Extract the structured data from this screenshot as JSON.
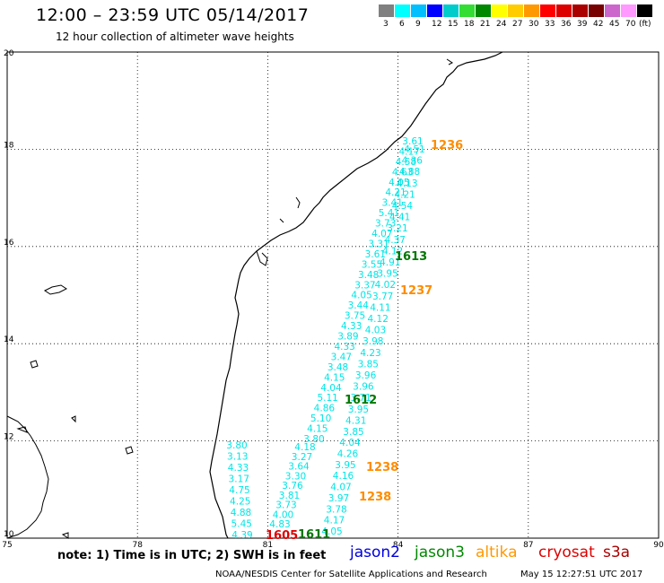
{
  "header": {
    "title": "12:00 – 23:59 UTC 05/14/2017",
    "subtitle": "12 hour collection of altimeter wave heights"
  },
  "scale": {
    "colors": [
      "#808080",
      "#00ffff",
      "#00bfff",
      "#0000ff",
      "#00cccc",
      "#33dd33",
      "#008800",
      "#ffff00",
      "#ffcc00",
      "#ff9900",
      "#ff0000",
      "#dd0000",
      "#aa0000",
      "#770000",
      "#cc66cc",
      "#ff99ff",
      "#000000"
    ],
    "labels": [
      "3",
      "6",
      "9",
      "12",
      "15",
      "18",
      "21",
      "24",
      "27",
      "30",
      "33",
      "36",
      "39",
      "42",
      "45",
      "70",
      "(ft)"
    ]
  },
  "axes": {
    "x_ticks": [
      "75",
      "78",
      "81",
      "84",
      "87",
      "90"
    ],
    "y_ticks": [
      "10",
      "12",
      "14",
      "16",
      "18",
      "20"
    ]
  },
  "tracks": {
    "left_track": [
      "3.80",
      "3.13",
      "4.33",
      "3.17",
      "4.75",
      "4.25",
      "4.88",
      "5.45",
      "4.39"
    ],
    "middle_track": [
      "4.18",
      "3.27",
      "3.64",
      "3.30",
      "3.76",
      "3.81",
      "3.73",
      "4.00",
      "4.83"
    ],
    "right_track_lower": [
      "4.04",
      "4.26",
      "3.95",
      "4.16",
      "4.07",
      "3.97",
      "3.78",
      "4.17",
      "4.05"
    ],
    "main_track": [
      "3.61",
      "4.17",
      "4.58",
      "4.63",
      "4.05",
      "4.21",
      "3.41",
      "5.41",
      "3.73",
      "4.07",
      "3.31",
      "3.61",
      "3.55",
      "3.48",
      "3.37",
      "4.05",
      "3.44",
      "3.75",
      "4.33",
      "3.89",
      "4.33",
      "3.47",
      "3.48",
      "4.15",
      "4.04",
      "5.11",
      "4.86",
      "5.10",
      "4.15",
      "3.80"
    ],
    "main_track_right": [
      "4.51",
      "4.36",
      "4.88",
      "4.13",
      "4.21",
      "4.54",
      "4.41",
      "3.21",
      "4.37",
      "4.12",
      "4.91",
      "3.95",
      "4.02",
      "3.77",
      "4.11",
      "4.12",
      "4.03",
      "3.98",
      "4.23",
      "3.85",
      "3.96",
      "3.96",
      "3.71",
      "3.95",
      "4.31",
      "3.85"
    ]
  },
  "time_labels": [
    {
      "text": "1236",
      "color": "#ff8c00"
    },
    {
      "text": "1613",
      "color": "#007700"
    },
    {
      "text": "1237",
      "color": "#ff8c00"
    },
    {
      "text": "1612",
      "color": "#007700"
    },
    {
      "text": "1238",
      "color": "#ff8c00"
    },
    {
      "text": "1238",
      "color": "#ff8c00"
    },
    {
      "text": "1605",
      "color": "#dd0000"
    },
    {
      "text": "1611",
      "color": "#007700"
    }
  ],
  "footer": {
    "note": "note: 1) Time is in UTC; 2) SWH is in feet",
    "satellites": [
      {
        "name": "jason2",
        "color": "#0000dd"
      },
      {
        "name": "jason3",
        "color": "#008800"
      },
      {
        "name": "altika",
        "color": "#ff9900"
      },
      {
        "name": "cryosat",
        "color": "#dd0000"
      },
      {
        "name": "s3a",
        "color": "#aa0000"
      }
    ],
    "credit": "NOAA/NESDIS Center for Satellite Applications and Research",
    "timestamp": "May 15 12:27:51 UTC 2017"
  },
  "colors": {
    "swh_values": "#00e5e5"
  }
}
